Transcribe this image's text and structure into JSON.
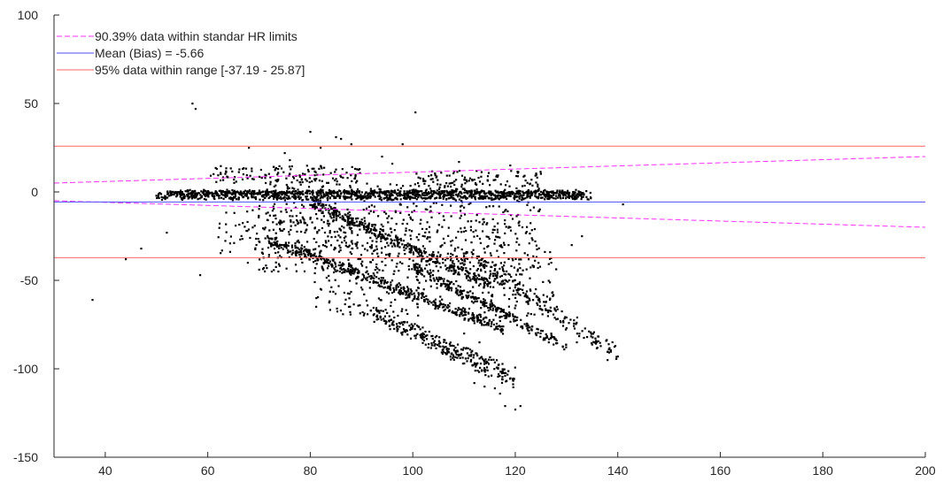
{
  "chart_data": {
    "type": "scatter",
    "title": "",
    "xlabel": "",
    "ylabel": "",
    "xlim": [
      30,
      200
    ],
    "ylim": [
      -150,
      100
    ],
    "grid": false,
    "legend_position": "top-left",
    "x_ticks": [
      40,
      60,
      80,
      100,
      120,
      140,
      160,
      180,
      200
    ],
    "y_ticks": [
      -150,
      -100,
      -50,
      0,
      50,
      100
    ],
    "x_tick_labels": [
      "40",
      "60",
      "80",
      "100",
      "120",
      "140",
      "160",
      "180",
      "200"
    ],
    "y_tick_labels": [
      "-150",
      "-100",
      "-50",
      "0",
      "50",
      "100"
    ],
    "colors": {
      "points": "#000000",
      "bias": "#4d4dff",
      "loa": "#ff6666",
      "hr_limits": "#ff33ff",
      "axis": "#262626"
    },
    "lines": [
      {
        "name": "90.39% data within standar HR limits",
        "style": "dashed",
        "color": "#ff33ff",
        "kind": "hr_limits",
        "upper": {
          "x": [
            30,
            200
          ],
          "y": [
            5,
            20
          ]
        },
        "lower": {
          "x": [
            30,
            200
          ],
          "y": [
            -5,
            -20
          ]
        }
      },
      {
        "name": "Mean (Bias) = -5.66",
        "style": "solid",
        "color": "#4d4dff",
        "kind": "bias",
        "y": -5.66
      },
      {
        "name": "95% data within range [-37.19 - 25.87]",
        "style": "solid",
        "color": "#ff6666",
        "kind": "loa",
        "y_values": [
          -37.19,
          25.87
        ]
      }
    ],
    "series": [
      {
        "color": "#000000",
        "clusters": [
          {
            "shape": "band",
            "x": [
              50,
              135
            ],
            "y_top": [
              0,
              0
            ],
            "y_bottom": [
              -4,
              -4
            ],
            "count": 900,
            "jitter": 1.5
          },
          {
            "shape": "band",
            "x": [
              52,
              132
            ],
            "y_top": [
              1,
              1
            ],
            "y_bottom": [
              -1,
              -1
            ],
            "count": 400,
            "jitter": 1
          },
          {
            "shape": "band",
            "x": [
              72,
              118
            ],
            "y_top": [
              -25,
              -75
            ],
            "y_bottom": [
              -30,
              -80
            ],
            "count": 450,
            "jitter": 2
          },
          {
            "shape": "band",
            "x": [
              92,
              120
            ],
            "y_top": [
              -65,
              -100
            ],
            "y_bottom": [
              -72,
              -112
            ],
            "count": 300,
            "jitter": 2
          },
          {
            "shape": "band",
            "x": [
              80,
              115
            ],
            "y_top": [
              -3,
              -50
            ],
            "y_bottom": [
              -8,
              -55
            ],
            "count": 350,
            "jitter": 2
          },
          {
            "shape": "band",
            "x": [
              100,
              130
            ],
            "y_top": [
              -40,
              -85
            ],
            "y_bottom": [
              -45,
              -90
            ],
            "count": 260,
            "jitter": 2
          },
          {
            "shape": "band",
            "x": [
              110,
              140
            ],
            "y_top": [
              -30,
              -88
            ],
            "y_bottom": [
              -40,
              -95
            ],
            "count": 200,
            "jitter": 3
          },
          {
            "shape": "box",
            "x": [
              70,
              125
            ],
            "y": [
              -45,
              5
            ],
            "count": 650
          },
          {
            "shape": "box",
            "x": [
              80,
              128
            ],
            "y": [
              -70,
              -30
            ],
            "count": 300
          },
          {
            "shape": "box",
            "x": [
              60,
              90
            ],
            "y": [
              5,
              15
            ],
            "count": 140
          },
          {
            "shape": "box",
            "x": [
              100,
              125
            ],
            "y": [
              3,
              12
            ],
            "count": 90
          },
          {
            "shape": "box",
            "x": [
              62,
              100
            ],
            "y": [
              -35,
              -10
            ],
            "count": 140
          }
        ],
        "outliers": [
          {
            "x": 37.5,
            "y": -61
          },
          {
            "x": 44,
            "y": -38
          },
          {
            "x": 47,
            "y": -32
          },
          {
            "x": 52,
            "y": -23
          },
          {
            "x": 57,
            "y": 50
          },
          {
            "x": 57.6,
            "y": 47
          },
          {
            "x": 58.5,
            "y": -47
          },
          {
            "x": 68,
            "y": 25
          },
          {
            "x": 67.8,
            "y": -40
          },
          {
            "x": 80,
            "y": 34
          },
          {
            "x": 85,
            "y": 31
          },
          {
            "x": 86,
            "y": 30
          },
          {
            "x": 82,
            "y": 25
          },
          {
            "x": 88,
            "y": 27
          },
          {
            "x": 98,
            "y": 27
          },
          {
            "x": 100.5,
            "y": 45
          },
          {
            "x": 141,
            "y": -7
          },
          {
            "x": 138,
            "y": -95
          },
          {
            "x": 140,
            "y": -93
          },
          {
            "x": 118,
            "y": -121
          },
          {
            "x": 120,
            "y": -123
          },
          {
            "x": 121,
            "y": -121
          },
          {
            "x": 116,
            "y": -111
          },
          {
            "x": 117,
            "y": -114
          },
          {
            "x": 112,
            "y": -108
          },
          {
            "x": 114,
            "y": -110
          },
          {
            "x": 133,
            "y": -25
          },
          {
            "x": 131,
            "y": -30
          },
          {
            "x": 119,
            "y": 15
          },
          {
            "x": 75,
            "y": 22
          },
          {
            "x": 76,
            "y": 18
          },
          {
            "x": 94,
            "y": 20
          },
          {
            "x": 96,
            "y": 16
          },
          {
            "x": 109,
            "y": 17
          },
          {
            "x": 124,
            "y": -55
          },
          {
            "x": 126,
            "y": -62
          },
          {
            "x": 128,
            "y": -72
          },
          {
            "x": 130,
            "y": -77
          },
          {
            "x": 132,
            "y": -85
          },
          {
            "x": 134,
            "y": -82
          },
          {
            "x": 136,
            "y": -88
          },
          {
            "x": 113,
            "y": -85
          },
          {
            "x": 110,
            "y": -80
          },
          {
            "x": 73,
            "y": -32
          },
          {
            "x": 70,
            "y": -28
          }
        ]
      }
    ]
  }
}
